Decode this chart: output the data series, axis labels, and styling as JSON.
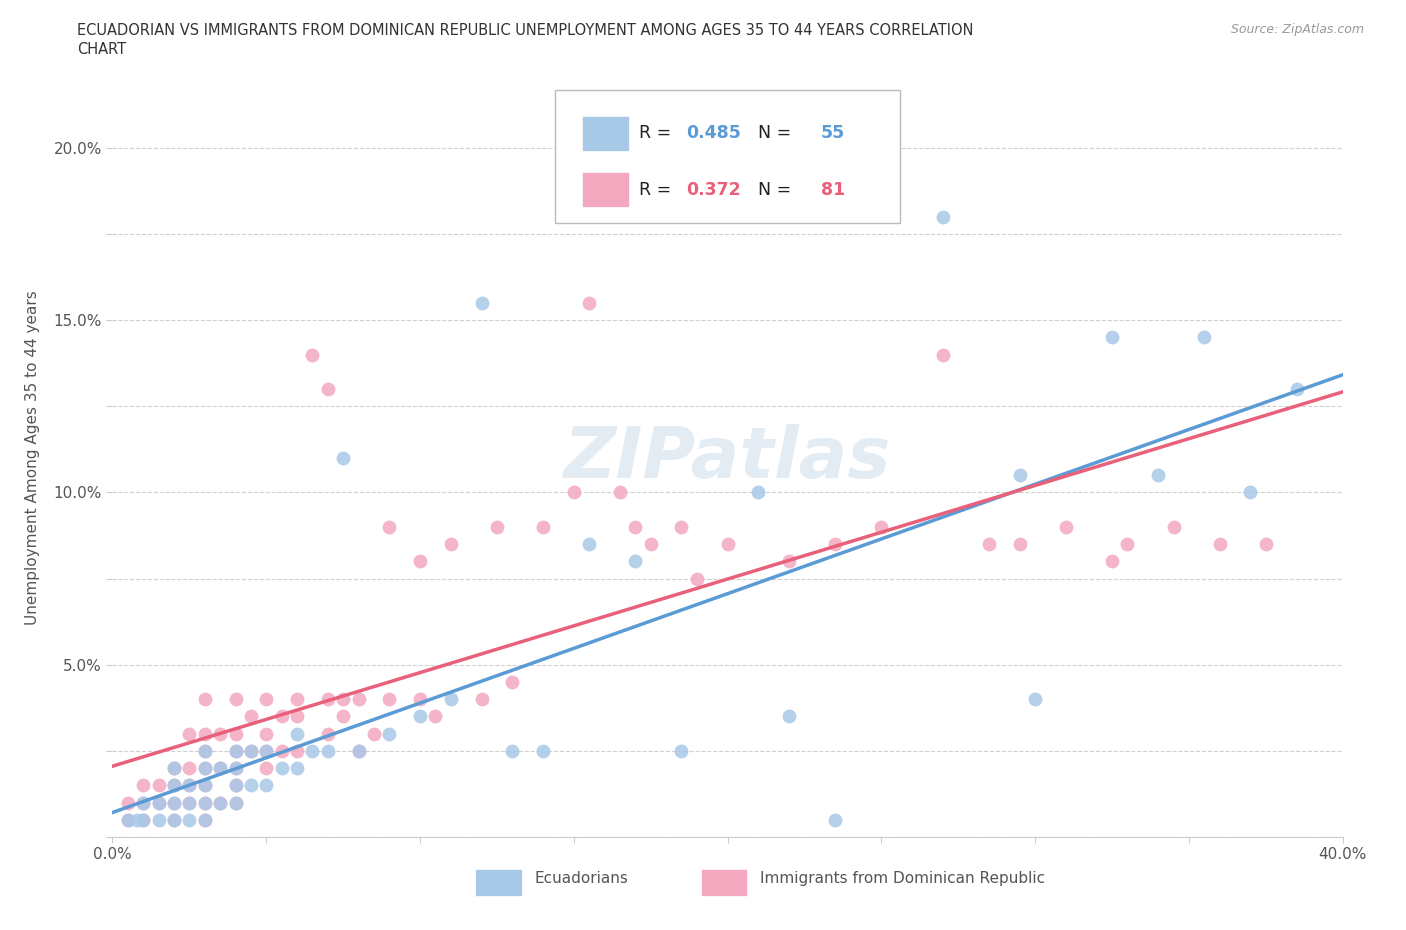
{
  "title": "ECUADORIAN VS IMMIGRANTS FROM DOMINICAN REPUBLIC UNEMPLOYMENT AMONG AGES 35 TO 44 YEARS CORRELATION\nCHART",
  "source": "Source: ZipAtlas.com",
  "ylabel_label": "Unemployment Among Ages 35 to 44 years",
  "xlim": [
    0.0,
    0.4
  ],
  "ylim": [
    0.0,
    0.22
  ],
  "xticks": [
    0.0,
    0.05,
    0.1,
    0.15,
    0.2,
    0.25,
    0.3,
    0.35,
    0.4
  ],
  "xtick_labels": [
    "0.0%",
    "",
    "",
    "",
    "",
    "",
    "",
    "",
    "40.0%"
  ],
  "yticks": [
    0.0,
    0.025,
    0.05,
    0.075,
    0.1,
    0.125,
    0.15,
    0.175,
    0.2
  ],
  "ytick_labels": [
    "",
    "",
    "5.0%",
    "",
    "10.0%",
    "",
    "15.0%",
    "",
    "20.0%"
  ],
  "blue_color": "#a8c8e8",
  "pink_color": "#f4a8c0",
  "blue_line_color": "#5b9bd5",
  "pink_line_color": "#e8607a",
  "legend_R1": "0.485",
  "legend_N1": "55",
  "legend_R2": "0.372",
  "legend_N2": "81",
  "legend_label1": "Ecuadorians",
  "legend_label2": "Immigrants from Dominican Republic",
  "watermark": "ZIPatlas",
  "blue_scatter_x": [
    0.005,
    0.008,
    0.01,
    0.01,
    0.015,
    0.015,
    0.02,
    0.02,
    0.02,
    0.02,
    0.025,
    0.025,
    0.025,
    0.03,
    0.03,
    0.03,
    0.03,
    0.03,
    0.035,
    0.035,
    0.04,
    0.04,
    0.04,
    0.04,
    0.045,
    0.045,
    0.05,
    0.05,
    0.055,
    0.06,
    0.06,
    0.065,
    0.07,
    0.075,
    0.08,
    0.09,
    0.1,
    0.11,
    0.12,
    0.13,
    0.14,
    0.155,
    0.17,
    0.185,
    0.21,
    0.22,
    0.235,
    0.27,
    0.295,
    0.3,
    0.325,
    0.34,
    0.355,
    0.37,
    0.385
  ],
  "blue_scatter_y": [
    0.005,
    0.005,
    0.005,
    0.01,
    0.005,
    0.01,
    0.005,
    0.01,
    0.015,
    0.02,
    0.005,
    0.01,
    0.015,
    0.005,
    0.01,
    0.015,
    0.02,
    0.025,
    0.01,
    0.02,
    0.01,
    0.015,
    0.02,
    0.025,
    0.015,
    0.025,
    0.015,
    0.025,
    0.02,
    0.02,
    0.03,
    0.025,
    0.025,
    0.11,
    0.025,
    0.03,
    0.035,
    0.04,
    0.155,
    0.025,
    0.025,
    0.085,
    0.08,
    0.025,
    0.1,
    0.035,
    0.005,
    0.18,
    0.105,
    0.04,
    0.145,
    0.105,
    0.145,
    0.1,
    0.13
  ],
  "pink_scatter_x": [
    0.005,
    0.005,
    0.01,
    0.01,
    0.01,
    0.015,
    0.015,
    0.02,
    0.02,
    0.02,
    0.02,
    0.025,
    0.025,
    0.025,
    0.025,
    0.03,
    0.03,
    0.03,
    0.03,
    0.03,
    0.03,
    0.03,
    0.035,
    0.035,
    0.035,
    0.04,
    0.04,
    0.04,
    0.04,
    0.04,
    0.04,
    0.045,
    0.045,
    0.05,
    0.05,
    0.05,
    0.05,
    0.055,
    0.055,
    0.06,
    0.06,
    0.06,
    0.065,
    0.07,
    0.07,
    0.07,
    0.075,
    0.075,
    0.08,
    0.08,
    0.085,
    0.09,
    0.09,
    0.1,
    0.1,
    0.105,
    0.11,
    0.12,
    0.125,
    0.13,
    0.14,
    0.15,
    0.155,
    0.165,
    0.17,
    0.175,
    0.185,
    0.19,
    0.2,
    0.22,
    0.235,
    0.25,
    0.27,
    0.285,
    0.295,
    0.31,
    0.325,
    0.33,
    0.345,
    0.36,
    0.375
  ],
  "pink_scatter_y": [
    0.005,
    0.01,
    0.005,
    0.01,
    0.015,
    0.01,
    0.015,
    0.005,
    0.01,
    0.015,
    0.02,
    0.01,
    0.015,
    0.02,
    0.03,
    0.005,
    0.01,
    0.015,
    0.02,
    0.025,
    0.03,
    0.04,
    0.01,
    0.02,
    0.03,
    0.01,
    0.015,
    0.02,
    0.025,
    0.03,
    0.04,
    0.025,
    0.035,
    0.02,
    0.025,
    0.03,
    0.04,
    0.025,
    0.035,
    0.025,
    0.035,
    0.04,
    0.14,
    0.03,
    0.04,
    0.13,
    0.035,
    0.04,
    0.025,
    0.04,
    0.03,
    0.04,
    0.09,
    0.04,
    0.08,
    0.035,
    0.085,
    0.04,
    0.09,
    0.045,
    0.09,
    0.1,
    0.155,
    0.1,
    0.09,
    0.085,
    0.09,
    0.075,
    0.085,
    0.08,
    0.085,
    0.09,
    0.14,
    0.085,
    0.085,
    0.09,
    0.08,
    0.085,
    0.09,
    0.085,
    0.085
  ],
  "background_color": "#ffffff",
  "grid_color": "#d0d0d0"
}
